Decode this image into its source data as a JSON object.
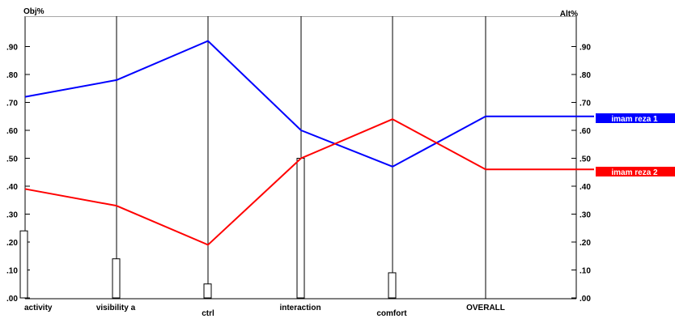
{
  "chart_data": {
    "type": "line",
    "left_axis_label": "Obj%",
    "right_axis_label": "Alt%",
    "categories": [
      "activity",
      "visibility a",
      "ctrl",
      "interaction",
      "comfort",
      "OVERALL"
    ],
    "left_ticks": [
      ".00",
      ".10",
      ".20",
      ".30",
      ".40",
      ".50",
      ".60",
      ".70",
      ".80",
      ".90"
    ],
    "right_ticks": [
      ".00",
      ".10",
      ".20",
      ".30",
      ".40",
      ".50",
      ".60",
      ".70",
      ".80",
      ".90"
    ],
    "ylim": [
      0,
      1
    ],
    "weights": [
      0.24,
      0.14,
      0.05,
      0.5,
      0.09
    ],
    "series": [
      {
        "name": "imam reza 1",
        "color": "#0000ff",
        "values": [
          0.72,
          0.78,
          0.92,
          0.6,
          0.47,
          0.65
        ]
      },
      {
        "name": "imam reza 2",
        "color": "#ff0000",
        "values": [
          0.39,
          0.33,
          0.19,
          0.5,
          0.64,
          0.46
        ]
      }
    ]
  }
}
